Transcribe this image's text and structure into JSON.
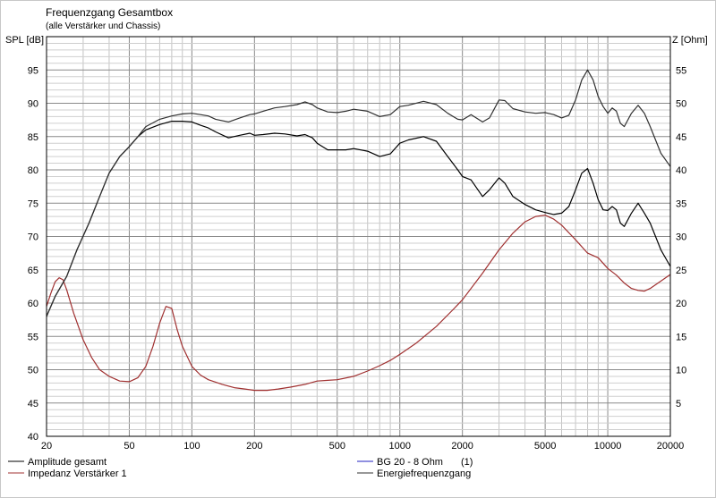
{
  "chart_data": {
    "type": "line",
    "title": "Frequenzgang Gesamtbox",
    "subtitle": "(alle Verstärker und Chassis)",
    "ylabel_left": "SPL [dB]",
    "ylabel_right": "Z [Ohm]",
    "x_scale": "log",
    "xlim": [
      20,
      20000
    ],
    "ylim_left": [
      40,
      100
    ],
    "ylim_right": [
      0,
      60
    ],
    "x_ticks": [
      "20",
      "50",
      "100",
      "200",
      "500",
      "1000",
      "2000",
      "5000",
      "10000",
      "20000"
    ],
    "y_ticks_left": [
      "40",
      "45",
      "50",
      "55",
      "60",
      "65",
      "70",
      "75",
      "80",
      "85",
      "90",
      "95"
    ],
    "y_ticks_right": [
      "5",
      "10",
      "15",
      "20",
      "25",
      "30",
      "35",
      "40",
      "45",
      "50",
      "55"
    ],
    "grid": true,
    "legend": {
      "placement": "bottom",
      "entries": [
        {
          "label": "Amplitude gesamt",
          "color": "#000000"
        },
        {
          "label": "Impedanz Verstärker 1",
          "color": "#a03030"
        },
        {
          "label": "BG 20 - 8 Ohm",
          "color": "#2020c0",
          "suffix": "(1)"
        },
        {
          "label": "Energiefrequenzgang",
          "color": "#303030"
        }
      ]
    },
    "series": [
      {
        "name": "Amplitude gesamt",
        "axis": "left",
        "color": "#000000",
        "x": [
          20,
          22,
          25,
          28,
          32,
          36,
          40,
          45,
          50,
          55,
          60,
          70,
          80,
          90,
          100,
          110,
          120,
          130,
          150,
          170,
          190,
          200,
          220,
          250,
          280,
          320,
          350,
          380,
          400,
          450,
          500,
          550,
          600,
          700,
          800,
          900,
          1000,
          1100,
          1300,
          1500,
          1700,
          1900,
          2000,
          2200,
          2500,
          2700,
          3000,
          3200,
          3500,
          4000,
          4500,
          5000,
          5500,
          6000,
          6500,
          7000,
          7500,
          8000,
          8500,
          9000,
          9500,
          10000,
          10500,
          11000,
          11500,
          12000,
          13000,
          14000,
          15000,
          16000,
          18000,
          20000
        ],
        "y": [
          58,
          61,
          64,
          68,
          72,
          76,
          79.5,
          82,
          83.5,
          85,
          86,
          86.8,
          87.3,
          87.3,
          87.2,
          86.7,
          86.3,
          85.7,
          84.8,
          85.2,
          85.5,
          85.2,
          85.3,
          85.5,
          85.4,
          85.1,
          85.3,
          84.8,
          84,
          83,
          83,
          83,
          83.2,
          82.8,
          82,
          82.4,
          84,
          84.5,
          85,
          84.3,
          82,
          80,
          79,
          78.5,
          76,
          77,
          78.8,
          78,
          76,
          74.8,
          74,
          73.6,
          73.3,
          73.5,
          74.5,
          77,
          79.5,
          80.2,
          78,
          75.5,
          74,
          73.9,
          74.5,
          74,
          72,
          71.5,
          73.5,
          75,
          73.5,
          72,
          68,
          65.5
        ]
      },
      {
        "name": "Impedanz Verstärker 1",
        "axis": "right",
        "color": "#a03030",
        "x": [
          20,
          21,
          22,
          23,
          24,
          25,
          27,
          30,
          33,
          36,
          40,
          45,
          50,
          55,
          60,
          65,
          70,
          75,
          80,
          85,
          90,
          100,
          110,
          120,
          140,
          160,
          180,
          200,
          230,
          260,
          300,
          350,
          400,
          450,
          500,
          600,
          700,
          800,
          900,
          1000,
          1200,
          1500,
          1800,
          2000,
          2500,
          3000,
          3500,
          4000,
          4500,
          5000,
          5500,
          6000,
          7000,
          8000,
          9000,
          10000,
          11000,
          12000,
          13000,
          14000,
          15000,
          16000,
          18000,
          20000
        ],
        "y": [
          19.5,
          21.5,
          23.2,
          23.8,
          23.5,
          22,
          18.5,
          14.5,
          11.8,
          10,
          9,
          8.3,
          8.2,
          8.8,
          10.5,
          13.5,
          17,
          19.5,
          19.2,
          16,
          13.5,
          10.5,
          9.2,
          8.5,
          7.8,
          7.3,
          7.1,
          6.9,
          6.9,
          7.1,
          7.4,
          7.8,
          8.3,
          8.4,
          8.5,
          9,
          9.8,
          10.6,
          11.4,
          12.3,
          14,
          16.5,
          19,
          20.5,
          24.5,
          28,
          30.5,
          32.2,
          33,
          33.2,
          32.6,
          31.7,
          29.5,
          27.5,
          26.8,
          25.2,
          24.2,
          23,
          22.2,
          21.9,
          21.8,
          22.2,
          23.3,
          24.3
        ]
      },
      {
        "name": "Energiefrequenzgang",
        "axis": "left",
        "color": "#303030",
        "x": [
          20,
          22,
          25,
          28,
          32,
          36,
          40,
          45,
          50,
          55,
          60,
          70,
          80,
          90,
          100,
          110,
          120,
          130,
          150,
          170,
          190,
          200,
          220,
          250,
          280,
          320,
          350,
          380,
          400,
          450,
          500,
          550,
          600,
          700,
          800,
          900,
          1000,
          1100,
          1300,
          1500,
          1700,
          1900,
          2000,
          2200,
          2500,
          2700,
          3000,
          3200,
          3500,
          4000,
          4500,
          5000,
          5500,
          6000,
          6500,
          7000,
          7500,
          8000,
          8500,
          9000,
          9500,
          10000,
          10500,
          11000,
          11500,
          12000,
          13000,
          14000,
          15000,
          16000,
          18000,
          20000
        ],
        "y": [
          58,
          61,
          64,
          68,
          72,
          76,
          79.5,
          82,
          83.5,
          85,
          86.5,
          87.6,
          88.1,
          88.4,
          88.5,
          88.3,
          88.1,
          87.6,
          87.2,
          87.8,
          88.3,
          88.4,
          88.8,
          89.3,
          89.5,
          89.8,
          90.2,
          89.8,
          89.3,
          88.7,
          88.6,
          88.8,
          89.1,
          88.8,
          88,
          88.3,
          89.5,
          89.7,
          90.3,
          89.8,
          88.5,
          87.6,
          87.5,
          88.3,
          87.2,
          87.8,
          90.5,
          90.4,
          89.2,
          88.7,
          88.5,
          88.6,
          88.3,
          87.8,
          88.2,
          90.5,
          93.5,
          95,
          93.5,
          91,
          89.5,
          88.5,
          89.3,
          88.8,
          87,
          86.5,
          88.5,
          89.7,
          88.5,
          86.5,
          82.5,
          80.5
        ]
      }
    ]
  }
}
